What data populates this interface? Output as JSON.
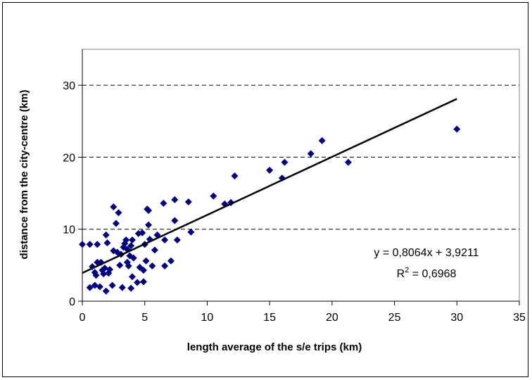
{
  "chart_data": {
    "type": "scatter",
    "title": "",
    "xlabel": "length average of the s/e trips (km)",
    "ylabel": "distance from the city-centre (km)",
    "xlim": [
      0,
      35
    ],
    "ylim": [
      0,
      35
    ],
    "xticks": [
      "0",
      "5",
      "10",
      "15",
      "20",
      "25",
      "30",
      "35"
    ],
    "yticks": [
      "0",
      "10",
      "20",
      "30"
    ],
    "grid": "horizontal dashed",
    "marker_color": "#000080",
    "trendline": {
      "slope": 0.8064,
      "intercept": 3.9211,
      "equation_label": "y = 0,8064x + 3,9211",
      "r2_prefix": "R",
      "r2_sup": "2",
      "r2_value": " = 0,6968"
    },
    "points": [
      [
        0.0,
        7.9
      ],
      [
        0.6,
        1.9
      ],
      [
        0.6,
        7.9
      ],
      [
        0.8,
        4.8
      ],
      [
        1.0,
        2.2
      ],
      [
        1.0,
        4.0
      ],
      [
        1.1,
        3.6
      ],
      [
        1.2,
        5.4
      ],
      [
        1.2,
        7.9
      ],
      [
        1.4,
        2.0
      ],
      [
        1.5,
        5.4
      ],
      [
        1.6,
        4.3
      ],
      [
        1.7,
        3.8
      ],
      [
        1.8,
        4.6
      ],
      [
        1.9,
        1.4
      ],
      [
        1.9,
        9.2
      ],
      [
        2.0,
        8.1
      ],
      [
        2.1,
        3.9
      ],
      [
        2.2,
        4.4
      ],
      [
        2.4,
        2.2
      ],
      [
        2.5,
        13.1
      ],
      [
        2.5,
        7.0
      ],
      [
        2.7,
        10.8
      ],
      [
        2.8,
        6.8
      ],
      [
        2.9,
        12.3
      ],
      [
        3.0,
        5.0
      ],
      [
        3.1,
        6.5
      ],
      [
        3.2,
        1.9
      ],
      [
        3.3,
        7.5
      ],
      [
        3.4,
        8.0
      ],
      [
        3.5,
        8.5
      ],
      [
        3.6,
        7.2
      ],
      [
        3.6,
        5.4
      ],
      [
        3.7,
        4.9
      ],
      [
        3.8,
        6.3
      ],
      [
        3.9,
        7.7
      ],
      [
        3.9,
        1.8
      ],
      [
        4.0,
        8.5
      ],
      [
        4.0,
        3.4
      ],
      [
        4.1,
        6.0
      ],
      [
        4.4,
        2.6
      ],
      [
        4.5,
        9.4
      ],
      [
        4.6,
        4.7
      ],
      [
        4.8,
        9.5
      ],
      [
        4.9,
        2.7
      ],
      [
        4.9,
        4.3
      ],
      [
        5.0,
        7.9
      ],
      [
        5.1,
        5.6
      ],
      [
        5.2,
        12.8
      ],
      [
        5.3,
        10.6
      ],
      [
        5.3,
        12.6
      ],
      [
        5.4,
        8.6
      ],
      [
        5.6,
        4.9
      ],
      [
        5.8,
        7.1
      ],
      [
        6.0,
        9.2
      ],
      [
        6.5,
        13.6
      ],
      [
        6.6,
        8.5
      ],
      [
        6.6,
        4.9
      ],
      [
        7.1,
        5.6
      ],
      [
        7.4,
        14.1
      ],
      [
        7.4,
        11.2
      ],
      [
        7.6,
        8.5
      ],
      [
        8.5,
        13.8
      ],
      [
        8.7,
        9.6
      ],
      [
        10.5,
        14.6
      ],
      [
        11.4,
        13.5
      ],
      [
        11.9,
        13.7
      ],
      [
        12.2,
        17.4
      ],
      [
        15.0,
        18.2
      ],
      [
        16.0,
        17.1
      ],
      [
        16.2,
        19.3
      ],
      [
        18.3,
        20.5
      ],
      [
        19.2,
        22.3
      ],
      [
        21.3,
        19.3
      ],
      [
        30.0,
        23.9
      ]
    ]
  }
}
